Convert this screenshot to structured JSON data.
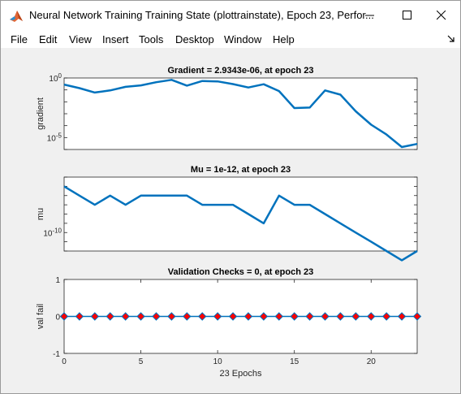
{
  "window": {
    "title": "Neural Network Training Training State (plottrainstate), Epoch 23, Perfor...",
    "icon": "matlab-icon",
    "controls": [
      "minimize-icon",
      "maximize-icon",
      "close-icon"
    ]
  },
  "menu": {
    "items": [
      "File",
      "Edit",
      "View",
      "Insert",
      "Tools",
      "Desktop",
      "Window",
      "Help"
    ]
  },
  "chart_data": [
    {
      "type": "line",
      "title": "Gradient = 2.9343e-06, at epoch 23",
      "ylabel": "gradient",
      "xlabel": "",
      "yscale": "log",
      "xlim": [
        0,
        23
      ],
      "ylim": [
        1e-06,
        1
      ],
      "ytick_labels": [
        "10^0",
        "10^-5"
      ],
      "color": "#0072BD",
      "x": [
        0,
        1,
        2,
        3,
        4,
        5,
        6,
        7,
        8,
        9,
        10,
        11,
        12,
        13,
        14,
        15,
        16,
        17,
        18,
        19,
        20,
        21,
        22,
        23
      ],
      "values": [
        0.28,
        0.14,
        0.06,
        0.09,
        0.18,
        0.24,
        0.44,
        0.7,
        0.23,
        0.56,
        0.52,
        0.31,
        0.16,
        0.3,
        0.08,
        0.003,
        0.0033,
        0.09,
        0.04,
        0.0016,
        0.00012,
        1.8e-05,
        1.6e-06,
        2.9e-06
      ]
    },
    {
      "type": "line",
      "title": "Mu = 1e-12, at epoch 23",
      "ylabel": "mu",
      "xlabel": "",
      "yscale": "log",
      "xlim": [
        0,
        23
      ],
      "ylim": [
        1e-12,
        0.0001
      ],
      "ytick_labels": [
        "10^-10"
      ],
      "color": "#0072BD",
      "x": [
        0,
        1,
        2,
        3,
        4,
        5,
        6,
        7,
        8,
        9,
        10,
        11,
        12,
        13,
        14,
        15,
        16,
        17,
        18,
        19,
        20,
        21,
        22,
        23
      ],
      "values": [
        1e-05,
        1e-06,
        1e-07,
        1e-06,
        1e-07,
        1e-06,
        1e-06,
        1e-06,
        1e-06,
        1e-07,
        1e-07,
        1e-07,
        1e-08,
        1e-09,
        1e-06,
        1e-07,
        1e-07,
        1e-08,
        1e-09,
        1e-10,
        1e-11,
        1e-12,
        1e-13,
        1e-12
      ]
    },
    {
      "type": "scatter",
      "title": "Validation Checks = 0, at epoch 23",
      "ylabel": "val fail",
      "xlabel": "23 Epochs",
      "xlim": [
        0,
        23
      ],
      "ylim": [
        -1,
        1
      ],
      "yticks": [
        -1,
        0,
        1
      ],
      "xticks": [
        0,
        5,
        10,
        15,
        20
      ],
      "marker": "diamond",
      "marker_face": "#ff0000",
      "line_color": "#0072BD",
      "x": [
        0,
        1,
        2,
        3,
        4,
        5,
        6,
        7,
        8,
        9,
        10,
        11,
        12,
        13,
        14,
        15,
        16,
        17,
        18,
        19,
        20,
        21,
        22,
        23
      ],
      "values": [
        0,
        0,
        0,
        0,
        0,
        0,
        0,
        0,
        0,
        0,
        0,
        0,
        0,
        0,
        0,
        0,
        0,
        0,
        0,
        0,
        0,
        0,
        0,
        0
      ]
    }
  ]
}
